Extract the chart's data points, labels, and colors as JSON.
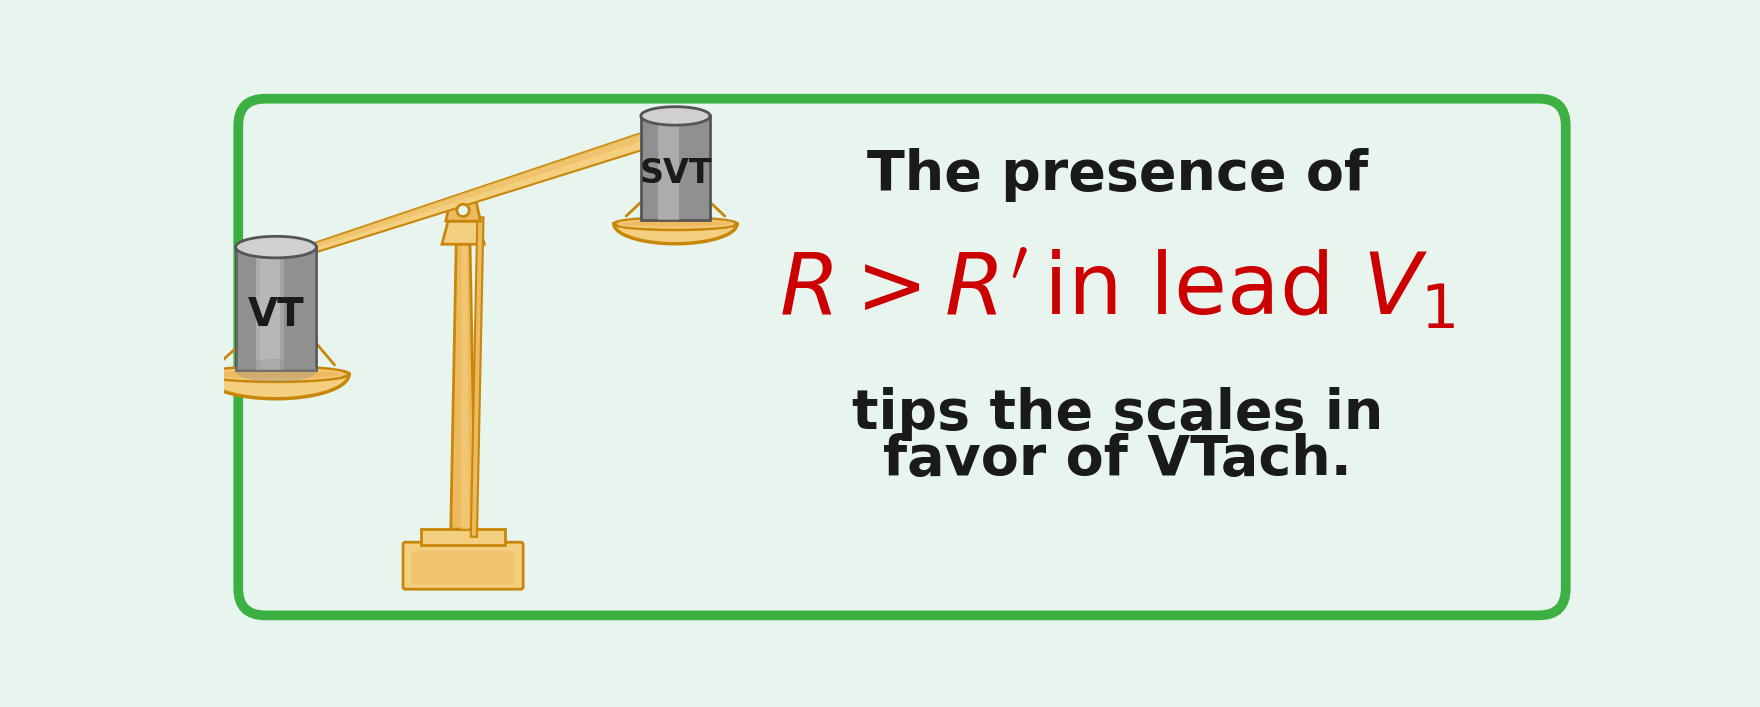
{
  "bg_color": "#e8f4ee",
  "border_color": "#3cb043",
  "text_color_black": "#1a1a1a",
  "text_color_red": "#cc0000",
  "gold": "#E8B455",
  "gold_dark": "#C8870A",
  "gold_light": "#F5CF80",
  "gold_mid": "#EDBA60",
  "cyl_color": "#909090",
  "cyl_dark": "#555555",
  "cyl_light": "#d0d0d0",
  "vt_label": "VT",
  "svt_label": "SVT",
  "line1": "The presence of",
  "line3a": "tips the scales in",
  "line3b": "favor of VTach."
}
